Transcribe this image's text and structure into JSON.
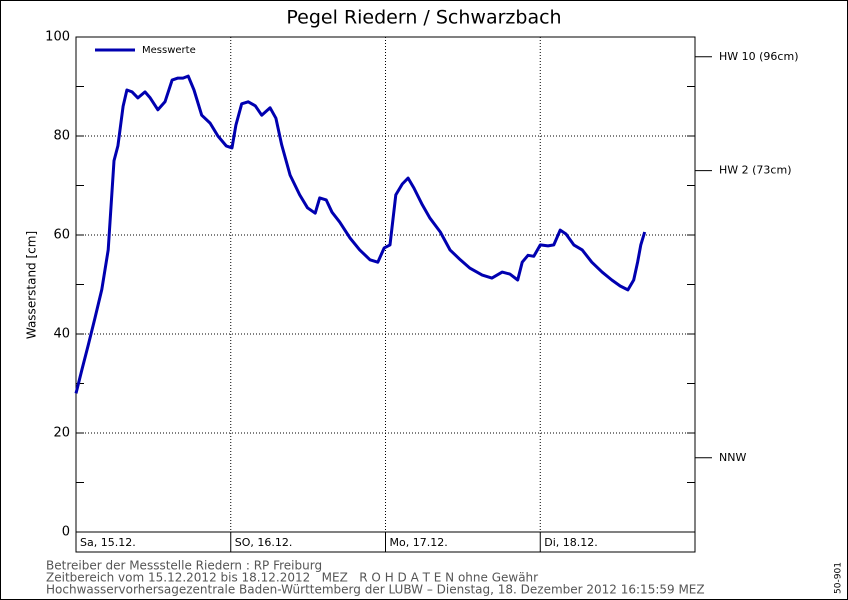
{
  "chart_data": {
    "type": "line",
    "title": "Pegel Riedern / Schwarzbach",
    "y_label": "Wasserstand [cm]",
    "xlim": [
      0,
      96
    ],
    "xticks": [
      {
        "value": 0,
        "label": "Sa, 15.12."
      },
      {
        "value": 24,
        "label": "SO, 16.12."
      },
      {
        "value": 48,
        "label": "Mo, 17.12."
      },
      {
        "value": 72,
        "label": "Di, 18.12."
      }
    ],
    "ylim": [
      0,
      100
    ],
    "yticks": [
      0,
      20,
      40,
      60,
      80,
      100
    ],
    "yminor_ticks": [
      10,
      30,
      50,
      70,
      90
    ],
    "grid": true,
    "legend": "upper left",
    "reference_lines": [
      {
        "value": 96,
        "label": "HW 10 (96cm)"
      },
      {
        "value": 73,
        "label": "HW 2 (73cm)"
      },
      {
        "value": 15,
        "label": "NNW"
      }
    ],
    "x": [
      0,
      0.9,
      1.9,
      2.9,
      4.0,
      5.0,
      5.9,
      6.5,
      7.3,
      7.9,
      8.7,
      9.6,
      10.7,
      11.5,
      12.7,
      13.8,
      14.9,
      15.8,
      16.6,
      17.4,
      18.3,
      19.5,
      20.8,
      22.0,
      23.3,
      24.2,
      24.8,
      25.7,
      26.7,
      27.8,
      28.8,
      30.1,
      31.0,
      31.9,
      33.2,
      34.7,
      35.9,
      37.1,
      37.8,
      38.8,
      39.7,
      40.9,
      42.5,
      44.0,
      45.6,
      46.8,
      47.8,
      48.7,
      49.6,
      50.6,
      51.5,
      52.4,
      53.7,
      54.9,
      56.5,
      58.0,
      59.6,
      61.1,
      63.0,
      64.5,
      66.1,
      67.3,
      68.5,
      69.2,
      70.1,
      71.0,
      72.0,
      73.2,
      74.1,
      75.1,
      76.0,
      77.2,
      78.5,
      80.0,
      81.6,
      83.1,
      84.4,
      85.6,
      86.5,
      87.1,
      87.6,
      88.2
    ],
    "series": [
      {
        "name": "Messwerte",
        "color": "#0000b0",
        "values": [
          28,
          32.7,
          37.8,
          43,
          49,
          57,
          75,
          78,
          86,
          89.3,
          88.9,
          87.7,
          88.9,
          87.7,
          85.3,
          86.9,
          91.3,
          91.7,
          91.7,
          92.1,
          89.3,
          84.2,
          82.6,
          80,
          78,
          77.6,
          82.2,
          86.5,
          86.9,
          86.1,
          84.2,
          85.7,
          83.6,
          78.2,
          72.1,
          68.1,
          65.5,
          64.4,
          67.5,
          67.1,
          64.6,
          62.6,
          59.4,
          57,
          55,
          54.5,
          57.4,
          58,
          68.1,
          70.3,
          71.5,
          69.5,
          66.1,
          63.4,
          60.6,
          57,
          55,
          53.3,
          51.9,
          51.3,
          52.5,
          52.1,
          50.9,
          54.5,
          55.9,
          55.7,
          58,
          57.8,
          58,
          61,
          60.2,
          58,
          57,
          54.5,
          52.5,
          50.9,
          49.7,
          48.9,
          50.9,
          54.5,
          58,
          60.6
        ]
      }
    ]
  },
  "footer": [
    "Betreiber der Messstelle Riedern : RP Freiburg",
    "Zeitbereich vom 15.12.2012 bis 18.12.2012   MEZ   R O H D A T E N ohne Gewähr",
    "Hochwasservorhersagezentrale Baden-Württemberg der LUBW – Dienstag, 18. Dezember 2012 16:15:59 MEZ"
  ],
  "code": "50-901"
}
